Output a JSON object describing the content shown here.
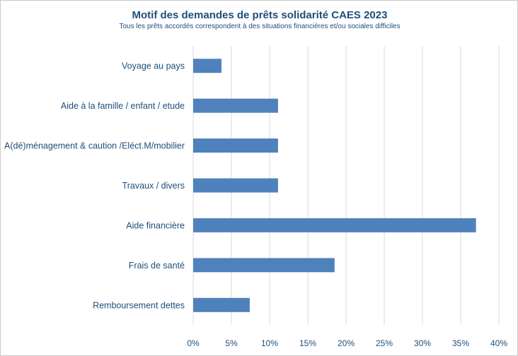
{
  "chart_data": {
    "type": "bar",
    "orientation": "horizontal",
    "title": "Motif des demandes de prêts solidarité CAES 2023",
    "subtitle": "Tous les prêts accordés correspondent à des situations financières et/ou sociales difficiles",
    "categories": [
      "Voyage au pays",
      "Aide à la famille / enfant / etude",
      "A(dé)ménagement & caution /Eléct.M/mobilier",
      "Travaux / divers",
      "Aide financière",
      "Frais de santé",
      "Remboursement dettes"
    ],
    "values": [
      3.7,
      11.1,
      11.1,
      11.1,
      37.0,
      18.5,
      7.4
    ],
    "xlim": [
      0,
      40
    ],
    "xticks": [
      0,
      5,
      10,
      15,
      20,
      25,
      30,
      35,
      40
    ],
    "xtick_labels": [
      "0%",
      "5%",
      "10%",
      "15%",
      "20%",
      "25%",
      "30%",
      "35%",
      "40%"
    ],
    "grid": true,
    "bar_color": "#4f81bd",
    "text_color": "#1f4e79",
    "grid_color": "#d9d9d9"
  }
}
